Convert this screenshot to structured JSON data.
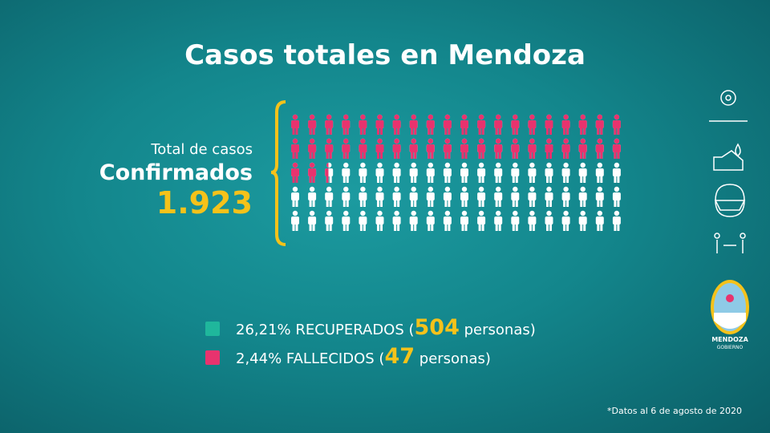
{
  "header": {
    "title": "Casos totales en Mendoza"
  },
  "total": {
    "caption": "Total de casos",
    "label": "Confirmados",
    "value": {
      "value": 1923,
      "label": "1.923"
    }
  },
  "legend": [
    {
      "percent": 26.21,
      "percent_label": "26,21%",
      "label": "RECUPERADOS (",
      "count": 504,
      "unit": "personas)",
      "color": "#1fb79c"
    },
    {
      "percent": 2.44,
      "percent_label": "2,44%",
      "label": "FALLECIDOS (",
      "count": 47,
      "unit": "personas)",
      "color": "#e8336e"
    }
  ],
  "footnote": "*Datos al 6 de agosto de 2020",
  "logo": {
    "name": "MENDOZA",
    "sub": "GOBIERNO"
  }
}
